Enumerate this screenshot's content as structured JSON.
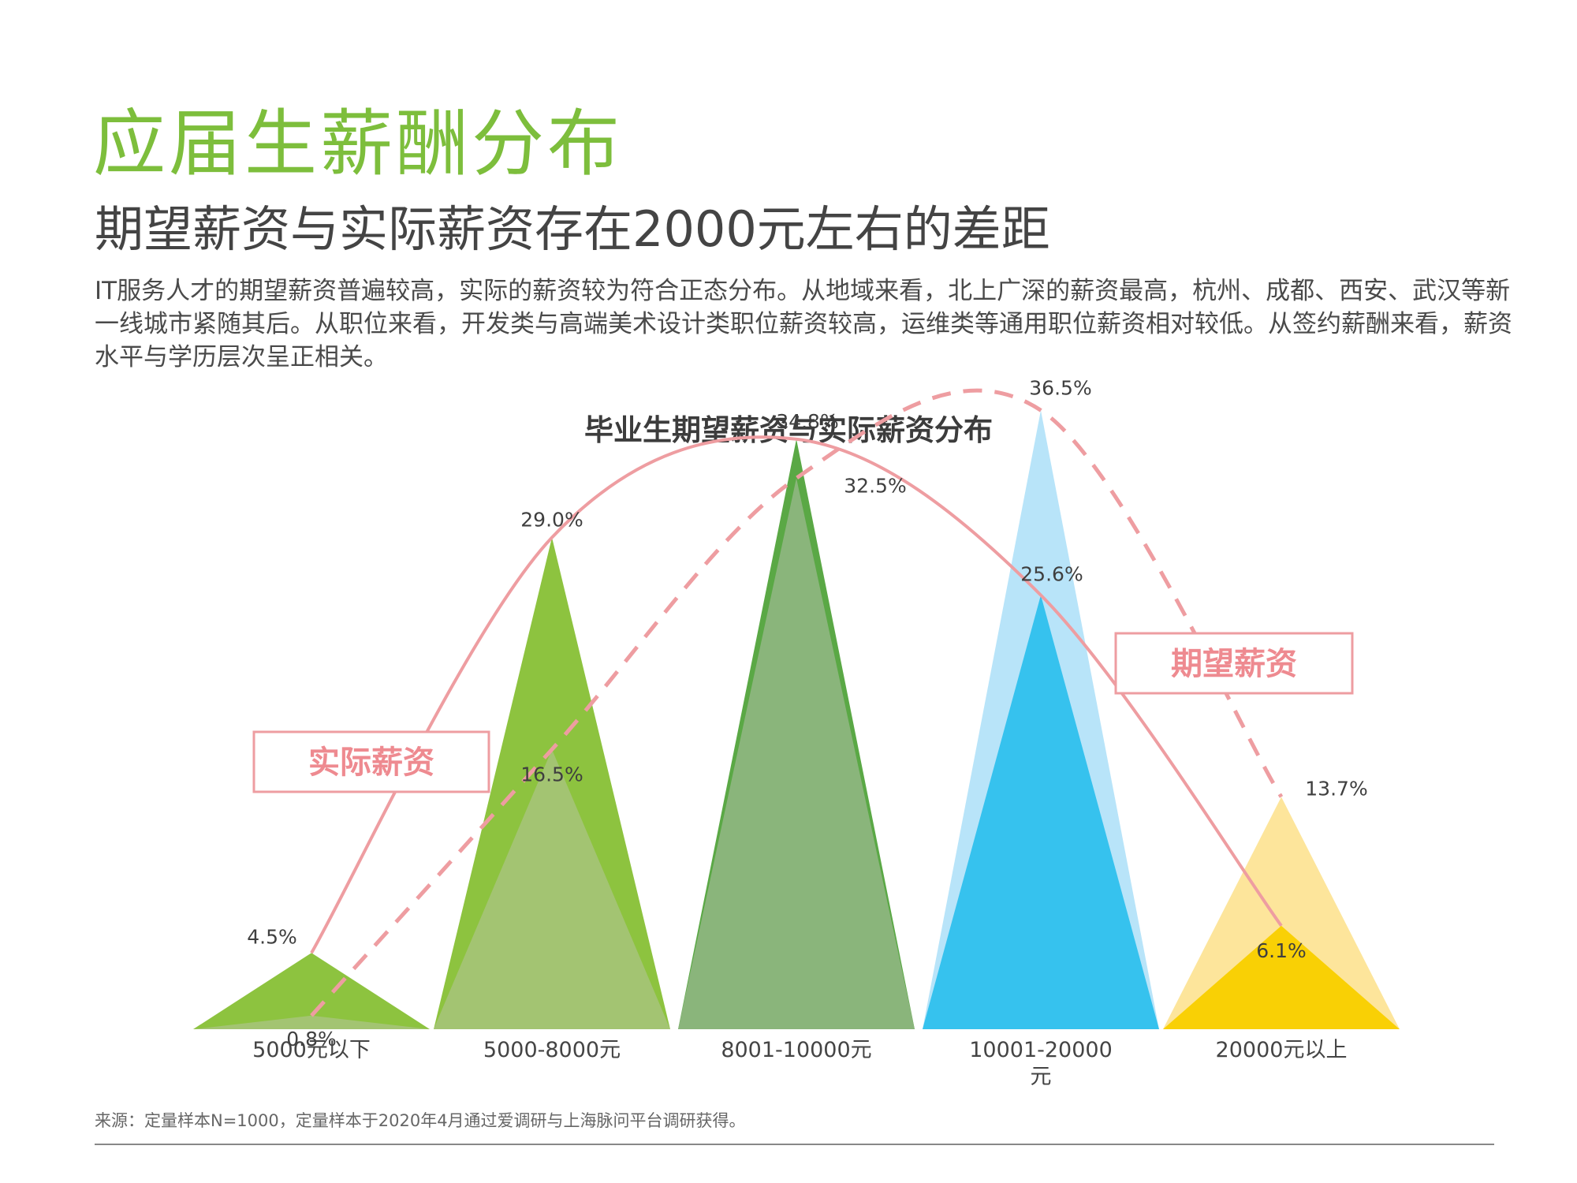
{
  "page": {
    "heading": "应届生薪酬分布",
    "subheading": "期望薪资与实际薪资存在2000元左右的差距",
    "body": "IT服务人才的期望薪资普遍较高，实际的薪资较为符合正态分布。从地域来看，北上广深的薪资最高，杭州、成都、西安、武汉等新一线城市紧随其后。从职位来看，开发类与高端美术设计类职位薪资较高，运维类等通用职位薪资相对较低。从签约薪酬来看，薪资水平与学历层次呈正相关。",
    "source": "来源：定量样本N=1000，定量样本于2020年4月通过爱调研与上海脉问平台调研获得。"
  },
  "chart_data": {
    "type": "area",
    "title": "毕业生期望薪资与实际薪资分布",
    "categories": [
      "5000元以下",
      "5000-8000元",
      "8001-10000元",
      "10001-20000元",
      "20000元以上"
    ],
    "ylim": [
      0,
      40
    ],
    "legend_placement": "inline-callouts",
    "series": [
      {
        "name": "实际薪资",
        "values": [
          4.5,
          29.0,
          34.8,
          25.6,
          6.1
        ],
        "value_labels": [
          "4.5%",
          "29.0%",
          "34.8%",
          "25.6%",
          "6.1%"
        ],
        "line_style": "solid",
        "colors": [
          "#8dc33f",
          "#8dc33f",
          "#5aa845",
          "#36c2ee",
          "#f9d005"
        ]
      },
      {
        "name": "期望薪资",
        "values": [
          0.8,
          16.5,
          32.5,
          36.5,
          13.7
        ],
        "value_labels": [
          "0.8%",
          "16.5%",
          "32.5%",
          "36.5%",
          "13.7%"
        ],
        "line_style": "dashed",
        "colors": [
          "#a3c472",
          "#a3c472",
          "#8ab57b",
          "#b8e4f9",
          "#fde59b"
        ]
      }
    ],
    "line_color": "#ee9da1",
    "callout_text_color": "#ee8a90"
  }
}
